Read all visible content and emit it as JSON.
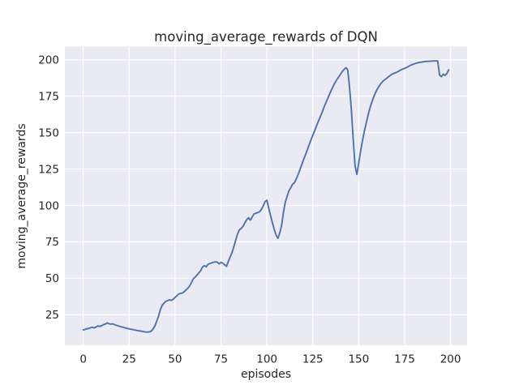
{
  "figure": {
    "background": "#ffffff"
  },
  "chart_data": {
    "type": "line",
    "title": "moving_average_rewards of DQN",
    "xlabel": "episodes",
    "ylabel": "moving_average_rewards",
    "legend": null,
    "grid": true,
    "x_ticks": [
      0,
      25,
      50,
      75,
      100,
      125,
      150,
      175,
      200
    ],
    "y_ticks": [
      25,
      50,
      75,
      100,
      125,
      150,
      175,
      200
    ],
    "xlim": [
      -10,
      209
    ],
    "ylim": [
      4,
      209
    ],
    "style": {
      "axes_background": "#eaeaf2",
      "grid_color": "#ffffff",
      "line_color": "#4c72b0",
      "text_color": "#262626",
      "line_width": 1.9
    },
    "series": [
      {
        "name": "moving_average_rewards of DQN",
        "points": [
          [
            0,
            14.5
          ],
          [
            1,
            14.9
          ],
          [
            2,
            15.3
          ],
          [
            3,
            15.6
          ],
          [
            4,
            16.0
          ],
          [
            5,
            16.4
          ],
          [
            6,
            15.9
          ],
          [
            7,
            16.5
          ],
          [
            8,
            17.3
          ],
          [
            9,
            16.9
          ],
          [
            10,
            17.4
          ],
          [
            11,
            18.1
          ],
          [
            12,
            18.5
          ],
          [
            13,
            19.3
          ],
          [
            14,
            18.8
          ],
          [
            15,
            18.5
          ],
          [
            16,
            18.7
          ],
          [
            17,
            18.2
          ],
          [
            18,
            17.7
          ],
          [
            19,
            17.3
          ],
          [
            20,
            16.9
          ],
          [
            22,
            16.2
          ],
          [
            24,
            15.5
          ],
          [
            26,
            15.0
          ],
          [
            28,
            14.5
          ],
          [
            30,
            14.0
          ],
          [
            32,
            13.6
          ],
          [
            33,
            13.3
          ],
          [
            34,
            13.1
          ],
          [
            35,
            13.0
          ],
          [
            36,
            13.2
          ],
          [
            37,
            13.7
          ],
          [
            38,
            15.0
          ],
          [
            39,
            17.2
          ],
          [
            40,
            20.5
          ],
          [
            41,
            24.0
          ],
          [
            42,
            28.5
          ],
          [
            43,
            31.5
          ],
          [
            44,
            33.0
          ],
          [
            45,
            34.2
          ],
          [
            46,
            34.6
          ],
          [
            47,
            35.2
          ],
          [
            48,
            34.8
          ],
          [
            49,
            35.6
          ],
          [
            50,
            36.8
          ],
          [
            51,
            38.0
          ],
          [
            52,
            39.2
          ],
          [
            53,
            39.6
          ],
          [
            54,
            39.9
          ],
          [
            55,
            40.8
          ],
          [
            56,
            42.0
          ],
          [
            57,
            43.2
          ],
          [
            58,
            44.8
          ],
          [
            59,
            47.2
          ],
          [
            60,
            49.8
          ],
          [
            61,
            50.8
          ],
          [
            62,
            52.3
          ],
          [
            63,
            53.8
          ],
          [
            64,
            55.3
          ],
          [
            65,
            57.8
          ],
          [
            66,
            58.6
          ],
          [
            67,
            57.9
          ],
          [
            68,
            59.6
          ],
          [
            69,
            60.1
          ],
          [
            70,
            60.6
          ],
          [
            71,
            60.9
          ],
          [
            72,
            61.3
          ],
          [
            73,
            61.0
          ],
          [
            74,
            59.9
          ],
          [
            75,
            60.9
          ],
          [
            76,
            60.3
          ],
          [
            77,
            59.2
          ],
          [
            78,
            58.2
          ],
          [
            79,
            61.6
          ],
          [
            80,
            64.6
          ],
          [
            81,
            67.6
          ],
          [
            82,
            71.6
          ],
          [
            83,
            76.1
          ],
          [
            84,
            80.3
          ],
          [
            85,
            83.2
          ],
          [
            86,
            84.2
          ],
          [
            87,
            85.6
          ],
          [
            88,
            88.1
          ],
          [
            89,
            90.2
          ],
          [
            90,
            91.6
          ],
          [
            91,
            89.9
          ],
          [
            92,
            92.1
          ],
          [
            93,
            94.2
          ],
          [
            94,
            94.6
          ],
          [
            95,
            95.1
          ],
          [
            96,
            95.6
          ],
          [
            97,
            97.2
          ],
          [
            98,
            99.6
          ],
          [
            99,
            102.6
          ],
          [
            100,
            103.6
          ],
          [
            101,
            98.1
          ],
          [
            102,
            93.1
          ],
          [
            103,
            88.1
          ],
          [
            104,
            83.6
          ],
          [
            105,
            79.6
          ],
          [
            106,
            77.4
          ],
          [
            107,
            81.1
          ],
          [
            108,
            86.2
          ],
          [
            109,
            95.2
          ],
          [
            110,
            102.2
          ],
          [
            111,
            106.2
          ],
          [
            112,
            110.1
          ],
          [
            113,
            112.2
          ],
          [
            114,
            114.6
          ],
          [
            115,
            115.6
          ],
          [
            116,
            118.2
          ],
          [
            117,
            121.2
          ],
          [
            118,
            124.6
          ],
          [
            119,
            128.1
          ],
          [
            120,
            131.6
          ],
          [
            121,
            134.7
          ],
          [
            122,
            138.2
          ],
          [
            123,
            141.6
          ],
          [
            124,
            145.1
          ],
          [
            125,
            148.2
          ],
          [
            126,
            151.2
          ],
          [
            127,
            154.6
          ],
          [
            128,
            157.7
          ],
          [
            129,
            160.7
          ],
          [
            130,
            163.7
          ],
          [
            131,
            167.2
          ],
          [
            132,
            170.2
          ],
          [
            133,
            173.1
          ],
          [
            134,
            176.1
          ],
          [
            135,
            178.9
          ],
          [
            136,
            181.6
          ],
          [
            137,
            184.1
          ],
          [
            138,
            186.2
          ],
          [
            139,
            188.1
          ],
          [
            140,
            189.9
          ],
          [
            141,
            191.9
          ],
          [
            142,
            193.4
          ],
          [
            143,
            194.6
          ],
          [
            144,
            193.1
          ],
          [
            145,
            181.2
          ],
          [
            146,
            165.1
          ],
          [
            147,
            145.2
          ],
          [
            148,
            127.1
          ],
          [
            149,
            121.2
          ],
          [
            150,
            129.1
          ],
          [
            151,
            137.2
          ],
          [
            152,
            144.2
          ],
          [
            153,
            150.6
          ],
          [
            154,
            156.2
          ],
          [
            155,
            161.6
          ],
          [
            156,
            166.4
          ],
          [
            157,
            170.4
          ],
          [
            158,
            174.0
          ],
          [
            159,
            177.1
          ],
          [
            160,
            179.6
          ],
          [
            161,
            181.7
          ],
          [
            162,
            183.6
          ],
          [
            163,
            185.1
          ],
          [
            164,
            186.1
          ],
          [
            165,
            187.1
          ],
          [
            166,
            188.1
          ],
          [
            167,
            189.1
          ],
          [
            168,
            190.0
          ],
          [
            169,
            190.6
          ],
          [
            170,
            191.1
          ],
          [
            171,
            191.6
          ],
          [
            172,
            192.4
          ],
          [
            173,
            193.1
          ],
          [
            174,
            193.6
          ],
          [
            175,
            194.1
          ],
          [
            176,
            194.7
          ],
          [
            177,
            195.4
          ],
          [
            178,
            196.1
          ],
          [
            179,
            196.6
          ],
          [
            180,
            197.1
          ],
          [
            181,
            197.6
          ],
          [
            182,
            197.9
          ],
          [
            183,
            198.2
          ],
          [
            184,
            198.4
          ],
          [
            185,
            198.6
          ],
          [
            186,
            198.8
          ],
          [
            187,
            198.9
          ],
          [
            188,
            199.0
          ],
          [
            189,
            199.1
          ],
          [
            190,
            199.1
          ],
          [
            191,
            199.2
          ],
          [
            192,
            199.2
          ],
          [
            193,
            199.2
          ],
          [
            194,
            189.6
          ],
          [
            195,
            188.4
          ],
          [
            196,
            190.2
          ],
          [
            197,
            189.2
          ],
          [
            198,
            190.6
          ],
          [
            199,
            193.1
          ]
        ]
      }
    ]
  }
}
